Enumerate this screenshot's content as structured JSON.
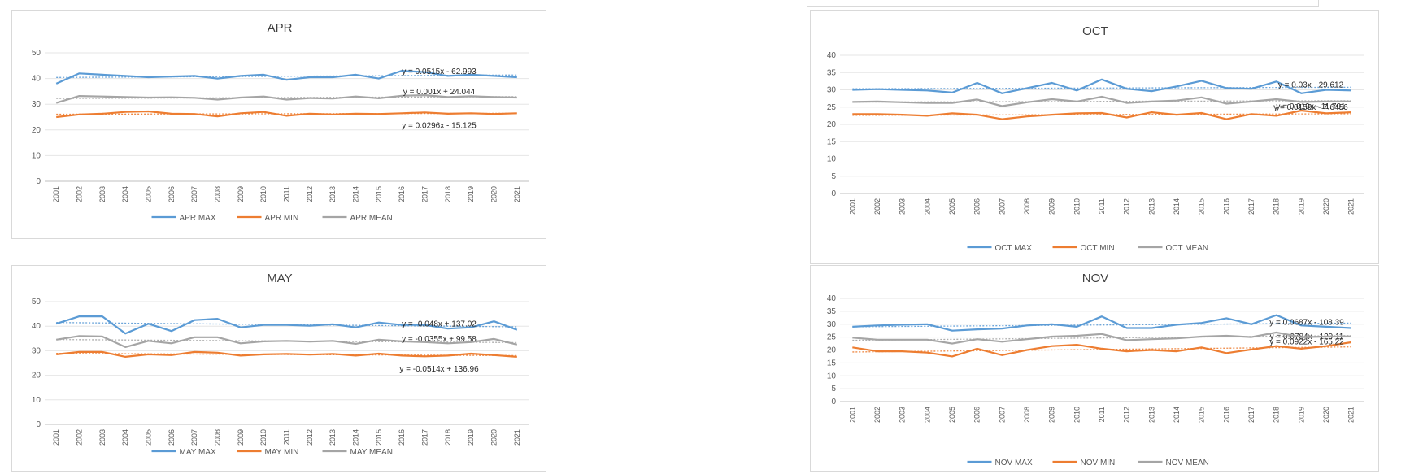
{
  "chart_data": [
    {
      "type": "line",
      "title": "APR",
      "x": [
        "2001",
        "2002",
        "2003",
        "2004",
        "2005",
        "2006",
        "2007",
        "2008",
        "2009",
        "2010",
        "2011",
        "2012",
        "2013",
        "2014",
        "2015",
        "2016",
        "2017",
        "2018",
        "2019",
        "2020",
        "2021"
      ],
      "y_ticks": [
        "0",
        "10",
        "20",
        "30",
        "40",
        "50"
      ],
      "ylim": [
        0,
        50
      ],
      "series": [
        {
          "name": "APR MAX",
          "color": "#5b9bd5",
          "values": [
            38,
            42,
            41.5,
            41,
            40.5,
            40.8,
            41,
            40,
            41,
            41.5,
            39.5,
            40.5,
            40.5,
            41.5,
            40,
            43,
            42.5,
            41,
            41.5,
            41,
            40.5
          ]
        },
        {
          "name": "APR MIN",
          "color": "#ed7d31",
          "values": [
            25,
            26,
            26.3,
            27,
            27.2,
            26.3,
            26.2,
            25.3,
            26.5,
            27,
            25.5,
            26.3,
            26,
            26.3,
            26.2,
            26.5,
            26.8,
            26.3,
            26.5,
            26.2,
            26.5
          ]
        },
        {
          "name": "APR MEAN",
          "color": "#a5a5a5",
          "values": [
            30.5,
            33.2,
            33,
            32.8,
            32.6,
            32.7,
            32.5,
            31.8,
            32.6,
            33,
            31.8,
            32.4,
            32.2,
            33,
            32.3,
            33.3,
            33.5,
            32.8,
            33.1,
            32.8,
            32.6
          ]
        }
      ],
      "trendlines": [
        "y = 0.0515x - 62.993",
        "y = 0.0296x - 15.125",
        "y = 0.001x + 24.044"
      ],
      "legend": "bottom",
      "grid": true
    },
    {
      "type": "line",
      "title": "MAY",
      "x": [
        "2001",
        "2002",
        "2003",
        "2004",
        "2005",
        "2006",
        "2007",
        "2008",
        "2009",
        "2010",
        "2011",
        "2012",
        "2013",
        "2014",
        "2015",
        "2016",
        "2017",
        "2018",
        "2019",
        "2020",
        "2021"
      ],
      "y_ticks": [
        "0",
        "10",
        "20",
        "30",
        "40",
        "50"
      ],
      "ylim": [
        0,
        50
      ],
      "series": [
        {
          "name": "MAY MAX",
          "color": "#5b9bd5",
          "values": [
            41,
            44,
            44,
            37,
            41,
            38,
            42.5,
            43,
            39.5,
            40.5,
            40.5,
            40.2,
            40.8,
            39.5,
            41.5,
            40.5,
            40.5,
            39,
            39.5,
            42,
            38.5
          ]
        },
        {
          "name": "MAY MIN",
          "color": "#ed7d31",
          "values": [
            28.5,
            29.5,
            29.5,
            27.5,
            28.5,
            28.2,
            29.5,
            29.2,
            28,
            28.5,
            28.7,
            28.4,
            28.7,
            28,
            28.8,
            28,
            27.7,
            28,
            28.8,
            28.2,
            27.5
          ]
        },
        {
          "name": "MAY MEAN",
          "color": "#a5a5a5",
          "values": [
            34.5,
            36,
            35.8,
            31.5,
            34,
            33,
            35.5,
            35.5,
            33,
            33.8,
            34,
            33.7,
            34,
            32.8,
            34.5,
            33.8,
            33.5,
            33,
            33.5,
            34.8,
            32.5
          ]
        }
      ],
      "trendlines": [
        "y = -0.048x + 137.02",
        "y = -0.0514x + 136.96",
        "y = -0.0355x + 99.58"
      ],
      "legend": "bottom",
      "grid": true
    },
    {
      "type": "line",
      "title": "OCT",
      "x": [
        "2001",
        "2002",
        "2003",
        "2004",
        "2005",
        "2006",
        "2007",
        "2008",
        "2009",
        "2010",
        "2011",
        "2012",
        "2013",
        "2014",
        "2015",
        "2016",
        "2017",
        "2018",
        "2019",
        "2020",
        "2021"
      ],
      "y_ticks": [
        "0",
        "5",
        "10",
        "15",
        "20",
        "25",
        "30",
        "35",
        "40"
      ],
      "ylim": [
        0,
        40
      ],
      "series": [
        {
          "name": "OCT MAX",
          "color": "#5b9bd5",
          "values": [
            30,
            30.2,
            30,
            29.8,
            29.2,
            32,
            29,
            30.5,
            32,
            29.8,
            33,
            30.3,
            29.6,
            31,
            32.6,
            30.5,
            30.3,
            32.4,
            29,
            30,
            29.8
          ]
        },
        {
          "name": "OCT MIN",
          "color": "#ed7d31",
          "values": [
            23,
            23,
            22.8,
            22.5,
            23.2,
            22.8,
            21.5,
            22.3,
            22.8,
            23.2,
            23.3,
            22,
            23.5,
            22.8,
            23.3,
            21.5,
            23,
            22.5,
            24,
            23.2,
            23.5
          ]
        },
        {
          "name": "OCT MEAN",
          "color": "#a5a5a5",
          "values": [
            26.5,
            26.6,
            26.4,
            26.2,
            26.2,
            27.2,
            25.3,
            26.4,
            27.3,
            26.6,
            28,
            26.2,
            26.6,
            26.9,
            27.8,
            26,
            26.6,
            27.3,
            26.5,
            26.6,
            26.6
          ]
        }
      ],
      "trendlines": [
        "y = 0.03x - 29.612",
        "y = 0.019x - 11.701",
        "y = 0.0152x - 7.6456"
      ],
      "legend": "bottom",
      "grid": true
    },
    {
      "type": "line",
      "title": "NOV",
      "x": [
        "2001",
        "2002",
        "2003",
        "2004",
        "2005",
        "2006",
        "2007",
        "2008",
        "2009",
        "2010",
        "2011",
        "2012",
        "2013",
        "2014",
        "2015",
        "2016",
        "2017",
        "2018",
        "2019",
        "2020",
        "2021"
      ],
      "y_ticks": [
        "0",
        "5",
        "10",
        "15",
        "20",
        "25",
        "30",
        "35",
        "40"
      ],
      "ylim": [
        0,
        40
      ],
      "series": [
        {
          "name": "NOV MAX",
          "color": "#5b9bd5",
          "values": [
            29,
            29.5,
            29.8,
            30,
            27.5,
            28,
            28.3,
            29.5,
            30,
            29,
            33,
            28.5,
            28.5,
            29.8,
            30.5,
            32.3,
            30,
            33.5,
            29.5,
            29,
            28.5
          ]
        },
        {
          "name": "NOV MIN",
          "color": "#ed7d31",
          "values": [
            21,
            19.5,
            19.5,
            19,
            17.5,
            20.5,
            18,
            20,
            21.5,
            22,
            20.5,
            19.5,
            20,
            19.5,
            21,
            18.8,
            20.2,
            21.5,
            20.5,
            21.5,
            23
          ]
        },
        {
          "name": "NOV MEAN",
          "color": "#a5a5a5",
          "values": [
            24.8,
            24,
            24,
            24,
            22.5,
            24.2,
            23.2,
            24.2,
            25.2,
            25.5,
            26.2,
            23.8,
            24.2,
            24.5,
            25.2,
            25.5,
            25,
            26.8,
            25,
            25.2,
            25.3
          ]
        }
      ],
      "trendlines": [
        "y = 0.0687x - 108.39",
        "y = 0.0784x - 129.11",
        "y = 0.0922x - 165.22"
      ],
      "legend": "bottom",
      "grid": true
    }
  ]
}
